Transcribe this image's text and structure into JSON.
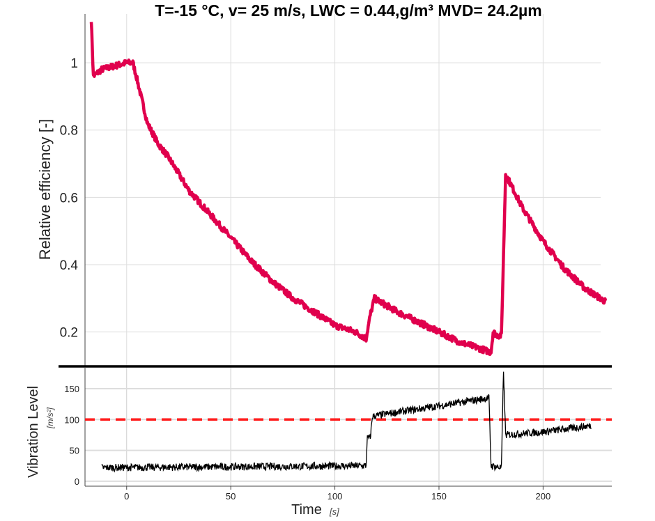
{
  "chart_data": [
    {
      "type": "line",
      "title": "T=-15 °C, v= 25 m/s, LWC = 0.44,g/m³ MVD= 24.2µm",
      "xlabel": "",
      "ylabel": "Relative efficiency  [-]",
      "xlim": [
        -20,
        233
      ],
      "ylim": [
        0.1,
        1.145
      ],
      "xticks": [
        0,
        50,
        100,
        150,
        200
      ],
      "yticks": [
        0.2,
        0.4,
        0.6,
        0.8,
        1
      ],
      "ytick_labels": [
        "0.2",
        "0.4",
        "0.6",
        "0.8",
        "1"
      ],
      "grid": true,
      "color": "#e0004d",
      "series": [
        {
          "x": [
            -17,
            -16,
            -12,
            0,
            3,
            5,
            10,
            15,
            20,
            25,
            30,
            40,
            50,
            60,
            70,
            80,
            90,
            100,
            110,
            115,
            117,
            119,
            130,
            150,
            160,
            170,
            175,
            176,
            178,
            180,
            182,
            190,
            200,
            210,
            220,
            230
          ],
          "y": [
            1.13,
            0.96,
            0.98,
            1.0,
            1.0,
            0.95,
            0.82,
            0.76,
            0.72,
            0.67,
            0.62,
            0.55,
            0.48,
            0.41,
            0.35,
            0.3,
            0.26,
            0.22,
            0.2,
            0.18,
            0.25,
            0.3,
            0.26,
            0.2,
            0.17,
            0.15,
            0.14,
            0.2,
            0.19,
            0.19,
            0.67,
            0.57,
            0.47,
            0.39,
            0.33,
            0.29
          ]
        }
      ]
    },
    {
      "type": "line",
      "xlabel": "Time",
      "xlabel_unit": "[s]",
      "ylabel": "Vibration Level",
      "ylabel_unit": "[m/s²]",
      "xlim": [
        -20,
        233
      ],
      "ylim": [
        -8,
        185
      ],
      "xticks": [
        0,
        50,
        100,
        150,
        200
      ],
      "yticks": [
        0,
        50,
        100,
        150
      ],
      "grid": true,
      "color": "#000000",
      "threshold": {
        "value": 100,
        "color": "#ff1a1a",
        "style": "dashed"
      },
      "series": [
        {
          "x": [
            -12,
            115,
            115.5,
            117,
            118,
            130,
            150,
            174,
            175,
            180,
            181,
            182,
            200,
            223
          ],
          "y": [
            22,
            25,
            70,
            70,
            105,
            112,
            122,
            135,
            25,
            22,
            180,
            75,
            80,
            90
          ]
        }
      ]
    }
  ]
}
